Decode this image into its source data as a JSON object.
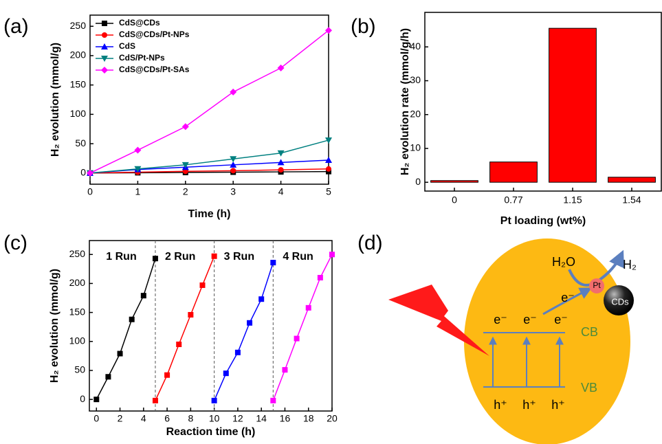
{
  "chart_data": [
    {
      "type": "line",
      "panel": "(a)",
      "x_label": "Time (h)",
      "y_label": "H₂ evolution (mmol/g)",
      "x": [
        0,
        1,
        2,
        3,
        4,
        5
      ],
      "xlim": [
        0,
        5
      ],
      "xticks": [
        0,
        1,
        2,
        3,
        4,
        5
      ],
      "ylim": [
        -19,
        269
      ],
      "yticks": [
        0,
        50,
        100,
        150,
        200,
        250
      ],
      "legend": "upper left",
      "series": [
        {
          "name": "CdS@CDs",
          "color": "#000000",
          "marker": "square",
          "values": [
            0,
            0.5,
            1,
            1.5,
            2,
            2.5
          ]
        },
        {
          "name": "CdS@CDs/Pt-NPs",
          "color": "#ff0000",
          "marker": "circle",
          "values": [
            0,
            1.5,
            3,
            4,
            5.5,
            7
          ]
        },
        {
          "name": "CdS",
          "color": "#0000ff",
          "marker": "triangle-up",
          "values": [
            0,
            6,
            10,
            14,
            18,
            22
          ]
        },
        {
          "name": "CdS/Pt-NPs",
          "color": "#008080",
          "marker": "triangle-down",
          "values": [
            0,
            7,
            14,
            24,
            34,
            56
          ]
        },
        {
          "name": "CdS@CDs/Pt-SAs",
          "color": "#ff00ff",
          "marker": "diamond",
          "values": [
            0,
            39,
            79,
            138,
            179,
            243
          ]
        }
      ]
    },
    {
      "type": "bar",
      "panel": "(b)",
      "x_label": "Pt loading (wt%)",
      "y_label": "H₂ evolution rate (mmol/g/h)",
      "categories": [
        "0",
        "0.77",
        "1.15",
        "1.54"
      ],
      "values": [
        0.5,
        6,
        45.5,
        1.5
      ],
      "color": "#ff0000",
      "ylim": [
        -2.6,
        50.2
      ],
      "yticks": [
        0,
        10,
        20,
        30,
        40
      ]
    },
    {
      "type": "line",
      "panel": "(c)",
      "x_label": "Reaction time (h)",
      "y_label": "H₂ evolution (mmol/g)",
      "xlim": [
        -0.6,
        20
      ],
      "xticks": [
        0,
        2,
        4,
        6,
        8,
        10,
        12,
        14,
        16,
        18,
        20
      ],
      "ylim": [
        -20,
        274
      ],
      "yticks": [
        0,
        50,
        100,
        150,
        200,
        250
      ],
      "vlines": [
        5,
        10,
        15
      ],
      "series": [
        {
          "name": "1 Run",
          "color": "#000000",
          "marker": "square",
          "x": [
            0,
            1,
            2,
            3,
            4,
            5
          ],
          "values": [
            0,
            39,
            79,
            138,
            179,
            243
          ]
        },
        {
          "name": "2 Run",
          "color": "#ff0000",
          "marker": "square",
          "x": [
            5,
            6,
            7,
            8,
            9,
            10
          ],
          "values": [
            -2,
            42,
            95,
            146,
            197,
            247
          ]
        },
        {
          "name": "3 Run",
          "color": "#0000ff",
          "marker": "square",
          "x": [
            10,
            11,
            12,
            13,
            14,
            15
          ],
          "values": [
            -2,
            45,
            81,
            132,
            173,
            236
          ]
        },
        {
          "name": "4 Run",
          "color": "#ff00ff",
          "marker": "square",
          "x": [
            15,
            16,
            17,
            18,
            19,
            20
          ],
          "values": [
            -2,
            51,
            105,
            158,
            210,
            250
          ]
        }
      ]
    }
  ],
  "diagram": {
    "panel": "(d)",
    "water": "H₂O",
    "hydrogen": "H₂",
    "pt": "Pt",
    "cds": "CDs",
    "cb": "CB",
    "vb": "VB",
    "electrons": [
      "e⁻",
      "e⁻",
      "e⁻",
      "e⁻"
    ],
    "holes": [
      "h⁺",
      "h⁺",
      "h⁺"
    ]
  }
}
